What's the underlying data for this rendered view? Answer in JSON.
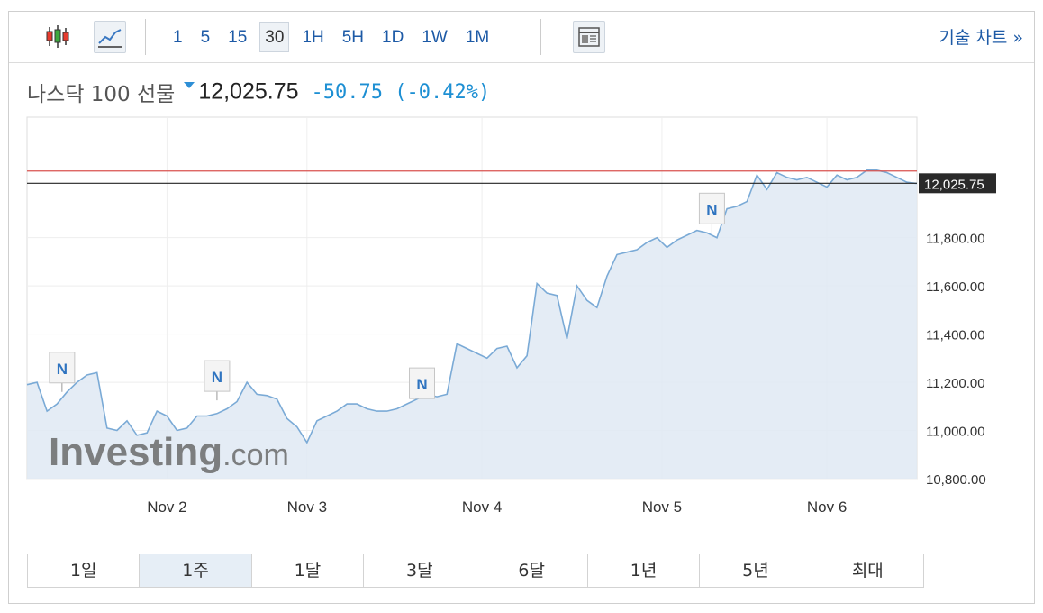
{
  "toolbar": {
    "candle_icon": "candlestick-icon",
    "line_icon": "line-chart-icon",
    "intervals": [
      {
        "label": "1",
        "active": false
      },
      {
        "label": "5",
        "active": false
      },
      {
        "label": "15",
        "active": false
      },
      {
        "label": "30",
        "active": true
      },
      {
        "label": "1H",
        "active": false
      },
      {
        "label": "5H",
        "active": false
      },
      {
        "label": "1D",
        "active": false
      },
      {
        "label": "1W",
        "active": false
      },
      {
        "label": "1M",
        "active": false
      }
    ],
    "layout_icon": "layout-icon",
    "tech_chart_label": "기술 차트 »"
  },
  "quote": {
    "name": "나스닥 100 선물",
    "last": "12,025.75",
    "change": "-50.75",
    "change_pct": "(-0.42%)"
  },
  "chart_data": {
    "type": "area",
    "watermark": "Investing.com",
    "ylim": [
      10800,
      12300
    ],
    "y_ticks": [
      10800,
      11000,
      11200,
      11400,
      11600,
      11800
    ],
    "y_tick_labels": [
      "10,800.00",
      "11,000.00",
      "11,200.00",
      "11,400.00",
      "11,600.00",
      "11,800.00"
    ],
    "x_labels": [
      {
        "label": "Nov 2",
        "x": 14
      },
      {
        "label": "Nov 3",
        "x": 28
      },
      {
        "label": "Nov 4",
        "x": 45.5
      },
      {
        "label": "Nov 5",
        "x": 63.5
      },
      {
        "label": "Nov 6",
        "x": 80
      }
    ],
    "last_price": 12025.75,
    "last_price_label": "12,025.75",
    "reference_price": 12076.5,
    "news_markers": [
      {
        "label": "N",
        "x": 3.5,
        "y": 11160
      },
      {
        "label": "N",
        "x": 19,
        "y": 11125
      },
      {
        "label": "N",
        "x": 39.5,
        "y": 11095
      },
      {
        "label": "N",
        "x": 68.5,
        "y": 11820
      }
    ],
    "series": [
      {
        "x": [
          0,
          1,
          2,
          3,
          4,
          5,
          6,
          7,
          8,
          9,
          10,
          11,
          12,
          13,
          14,
          15,
          16,
          17,
          18,
          19,
          20,
          21,
          22,
          23,
          24,
          25,
          26,
          27,
          28,
          29,
          30,
          31,
          32,
          33,
          34,
          35,
          36,
          37,
          38,
          39,
          40,
          41,
          42,
          43,
          44,
          45,
          46,
          47,
          48,
          49,
          50,
          51,
          52,
          53,
          54,
          55,
          56,
          57,
          58,
          59,
          60,
          61,
          62,
          63,
          64,
          65,
          66,
          67,
          68,
          69,
          70,
          71,
          72,
          73,
          74,
          75,
          76,
          77,
          78,
          79,
          80,
          81,
          82,
          83,
          84,
          85,
          86,
          87,
          88,
          89
        ],
        "y": [
          11190,
          11200,
          11080,
          11110,
          11160,
          11200,
          11230,
          11240,
          11010,
          11000,
          11040,
          10980,
          10990,
          11080,
          11060,
          11000,
          11010,
          11060,
          11060,
          11070,
          11090,
          11120,
          11200,
          11150,
          11145,
          11130,
          11050,
          11015,
          10950,
          11040,
          11060,
          11080,
          11110,
          11110,
          11090,
          11080,
          11080,
          11090,
          11110,
          11130,
          11150,
          11140,
          11150,
          11360,
          11340,
          11320,
          11300,
          11340,
          11350,
          11260,
          11310,
          11610,
          11570,
          11560,
          11380,
          11600,
          11540,
          11510,
          11640,
          11730,
          11740,
          11750,
          11780,
          11800,
          11760,
          11790,
          11810,
          11830,
          11820,
          11800,
          11920,
          11930,
          11950,
          12060,
          12000,
          12070,
          12050,
          12040,
          12050,
          12030,
          12010,
          12060,
          12040,
          12050,
          12080,
          12080,
          12070,
          12050,
          12030,
          12025
        ]
      }
    ]
  }
}
